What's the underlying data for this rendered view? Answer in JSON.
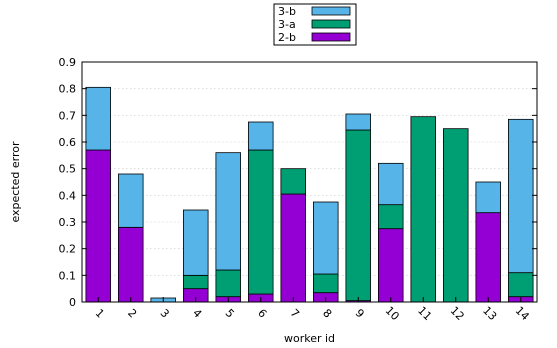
{
  "chart_data": {
    "type": "bar",
    "stacked": true,
    "title": "",
    "xlabel": "worker id",
    "ylabel": "expected error",
    "ylim": [
      0,
      0.9
    ],
    "yticks": [
      "0",
      "0.1",
      "0.2",
      "0.3",
      "0.4",
      "0.5",
      "0.6",
      "0.7",
      "0.8",
      "0.9"
    ],
    "categories": [
      "1",
      "2",
      "3",
      "4",
      "5",
      "6",
      "7",
      "8",
      "9",
      "10",
      "11",
      "12",
      "13",
      "14"
    ],
    "grid": true,
    "legend_position": "top-center",
    "series": [
      {
        "name": "2-b",
        "color": "#9400d3",
        "values": [
          0.57,
          0.28,
          0.0,
          0.05,
          0.02,
          0.03,
          0.405,
          0.035,
          0.005,
          0.275,
          0.0,
          0.0,
          0.335,
          0.02
        ]
      },
      {
        "name": "3-a",
        "color": "#009e73",
        "values": [
          0.0,
          0.0,
          0.0,
          0.05,
          0.1,
          0.54,
          0.095,
          0.07,
          0.64,
          0.09,
          0.695,
          0.65,
          0.0,
          0.09
        ]
      },
      {
        "name": "3-b",
        "color": "#56b4e9",
        "values": [
          0.235,
          0.2,
          0.015,
          0.245,
          0.44,
          0.105,
          0.0,
          0.27,
          0.06,
          0.155,
          0.0,
          0.0,
          0.115,
          0.575
        ]
      }
    ]
  }
}
